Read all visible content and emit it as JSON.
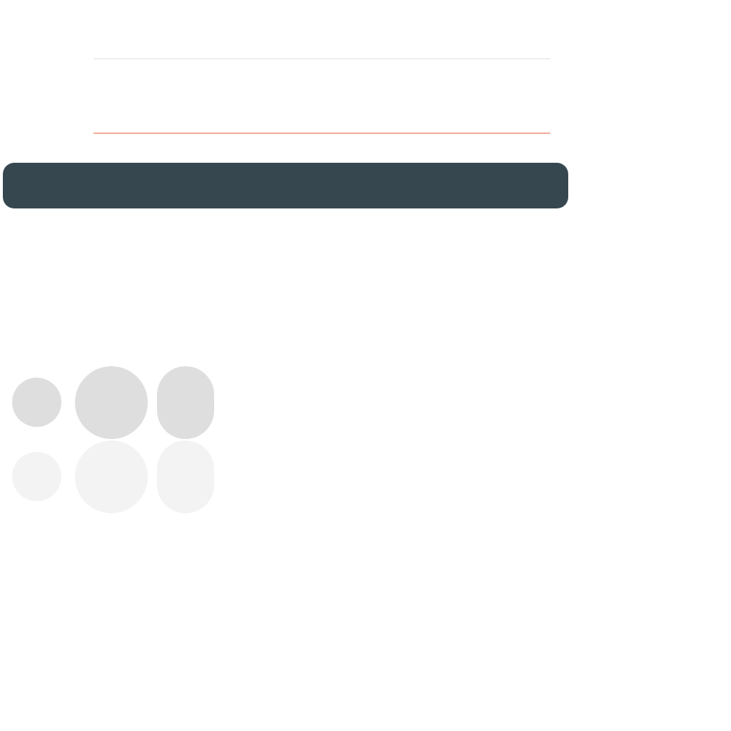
{
  "colors": {
    "background": "#ffffff",
    "divider_top": "#e0e0e0",
    "accent": "#e8643c",
    "dark_bar": "#37474f",
    "swatch_dark": "#dedede",
    "swatch_light": "#f3f3f3"
  },
  "shape_swatches": {
    "rows": [
      {
        "tone": "dark",
        "shapes": [
          "circle-small",
          "circle-large",
          "pill"
        ]
      },
      {
        "tone": "light",
        "shapes": [
          "circle-small",
          "circle-large",
          "pill"
        ]
      }
    ]
  }
}
